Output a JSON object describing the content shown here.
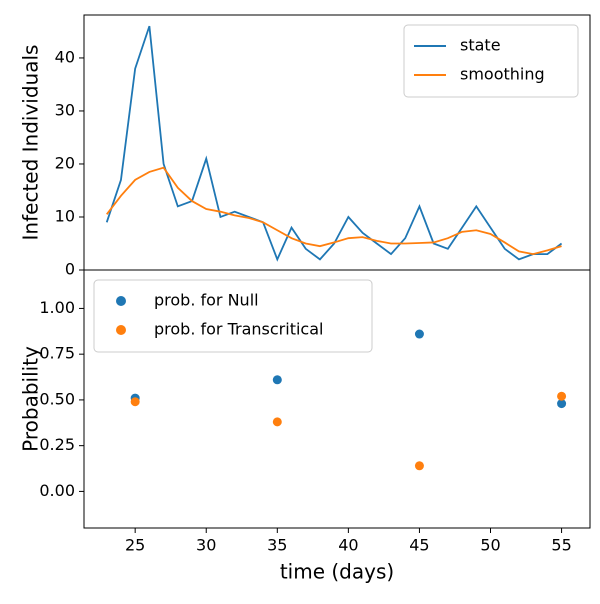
{
  "chart_data": [
    {
      "type": "line",
      "ylabel": "Infected Individuals",
      "x": [
        23,
        24,
        25,
        26,
        27,
        28,
        29,
        30,
        31,
        32,
        33,
        34,
        35,
        36,
        37,
        38,
        39,
        40,
        41,
        42,
        43,
        44,
        45,
        46,
        47,
        48,
        49,
        50,
        51,
        52,
        53,
        54,
        55
      ],
      "series": [
        {
          "name": "state",
          "color": "#1f77b4",
          "values": [
            9,
            17,
            38,
            46,
            20,
            12,
            13,
            21,
            10,
            11,
            10,
            9,
            2,
            8,
            4,
            2,
            5,
            10,
            7,
            5,
            3,
            6,
            12,
            5,
            4,
            8,
            12,
            8,
            4,
            2,
            3,
            3,
            5
          ]
        },
        {
          "name": "smoothing",
          "color": "#ff7f0e",
          "values": [
            10.5,
            14,
            17,
            18.5,
            19.3,
            15.5,
            13,
            11.5,
            11,
            10.3,
            9.8,
            9,
            7.5,
            6,
            5,
            4.5,
            5.2,
            6,
            6.2,
            5.5,
            5,
            5,
            5.1,
            5.2,
            6,
            7.2,
            7.5,
            6.8,
            5.2,
            3.5,
            3,
            3.7,
            4.5
          ]
        }
      ],
      "xlim": [
        21.4,
        57.0
      ],
      "ylim": [
        0,
        48.1
      ],
      "yticks": [
        0,
        10,
        20,
        30,
        40
      ],
      "legend": "upper right"
    },
    {
      "type": "scatter",
      "xlabel": "time (days)",
      "ylabel": "Probability",
      "x": [
        25,
        35,
        45,
        55
      ],
      "series": [
        {
          "name": "prob. for Null",
          "color": "#1f77b4",
          "values": [
            0.51,
            0.61,
            0.86,
            0.48
          ]
        },
        {
          "name": "prob. for Transcritical",
          "color": "#ff7f0e",
          "values": [
            0.49,
            0.38,
            0.14,
            0.52
          ]
        }
      ],
      "xlim": [
        21.4,
        57.0
      ],
      "ylim": [
        -0.2,
        1.21
      ],
      "xticks": [
        25,
        30,
        35,
        40,
        45,
        50,
        55
      ],
      "yticks": [
        {
          "value": 0,
          "label": "0.00"
        },
        {
          "value": 0.25,
          "label": "0.25"
        },
        {
          "value": 0.5,
          "label": "0.50"
        },
        {
          "value": 0.75,
          "label": "0.75"
        },
        {
          "value": 1,
          "label": "1.00"
        }
      ],
      "legend": "upper left"
    }
  ]
}
